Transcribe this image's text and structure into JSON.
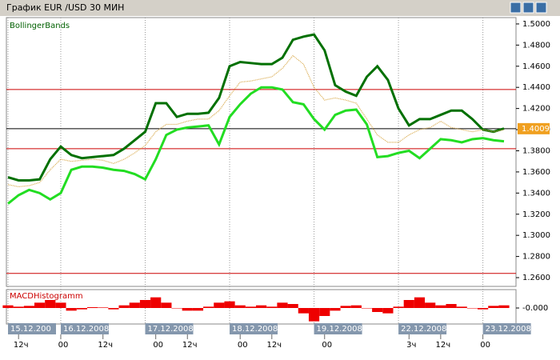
{
  "window_title": "График EUR /USD  30 МИН",
  "chart_data": [
    {
      "type": "line",
      "title": "BollingerBands",
      "categories": [
        "15.12.200",
        null,
        null,
        null,
        null,
        "16.12.2008",
        null,
        null,
        null,
        null,
        null,
        null,
        null,
        "17.12.2008",
        null,
        null,
        null,
        null,
        null,
        null,
        null,
        "18.12.2008",
        null,
        null,
        null,
        null,
        null,
        null,
        null,
        "19.12.2008",
        null,
        null,
        null,
        null,
        null,
        null,
        null,
        "22.12.2008",
        null,
        null,
        null,
        null,
        null,
        null,
        null,
        "23.12.2008",
        null,
        null
      ],
      "time_labels": [
        null,
        "12ч",
        null,
        null,
        null,
        "00",
        null,
        null,
        null,
        "12ч",
        null,
        null,
        null,
        null,
        "00",
        null,
        null,
        "12ч",
        null,
        null,
        null,
        null,
        "00",
        null,
        null,
        "12ч",
        null,
        null,
        null,
        null,
        "00",
        null,
        null,
        null,
        null,
        null,
        null,
        null,
        "3ч",
        null,
        null,
        "12ч",
        null,
        null,
        null,
        "00",
        null,
        null
      ],
      "series": [
        {
          "color": "#007000",
          "values": [
            1.355,
            1.352,
            1.352,
            1.353,
            1.372,
            1.384,
            1.376,
            1.373,
            1.374,
            1.375,
            1.376,
            1.382,
            1.39,
            1.398,
            1.425,
            1.425,
            1.412,
            1.415,
            1.415,
            1.416,
            1.43,
            1.46,
            1.464,
            1.463,
            1.462,
            1.462,
            1.468,
            1.485,
            1.488,
            1.49,
            1.475,
            1.442,
            1.436,
            1.432,
            1.45,
            1.46,
            1.447,
            1.42,
            1.404,
            1.41,
            1.41,
            1.414,
            1.418,
            1.418,
            1.41,
            1.4,
            1.398,
            1.401
          ]
        },
        {
          "color": "#22dd22",
          "values": [
            1.33,
            1.338,
            1.343,
            1.34,
            1.334,
            1.34,
            1.362,
            1.365,
            1.365,
            1.364,
            1.362,
            1.361,
            1.358,
            1.353,
            1.372,
            1.395,
            1.4,
            1.402,
            1.403,
            1.404,
            1.386,
            1.412,
            1.424,
            1.434,
            1.44,
            1.44,
            1.438,
            1.426,
            1.424,
            1.41,
            1.4,
            1.414,
            1.418,
            1.419,
            1.405,
            1.374,
            1.375,
            1.378,
            1.38,
            1.373,
            1.382,
            1.391,
            1.39,
            1.388,
            1.391,
            1.392,
            1.39,
            1.389
          ]
        },
        {
          "color": "#d8a848",
          "values": [
            1.348,
            1.346,
            1.347,
            1.35,
            1.362,
            1.372,
            1.37,
            1.371,
            1.372,
            1.371,
            1.368,
            1.372,
            1.378,
            1.385,
            1.398,
            1.405,
            1.405,
            1.408,
            1.41,
            1.41,
            1.418,
            1.432,
            1.445,
            1.446,
            1.448,
            1.45,
            1.458,
            1.47,
            1.462,
            1.44,
            1.428,
            1.43,
            1.428,
            1.425,
            1.41,
            1.395,
            1.388,
            1.388,
            1.395,
            1.4,
            1.402,
            1.408,
            1.402,
            1.4,
            1.398,
            1.4,
            1.398,
            1.4
          ]
        }
      ],
      "hlines": [
        {
          "value": 1.438,
          "color": "#cc0000"
        },
        {
          "value": 1.382,
          "color": "#cc0000"
        },
        {
          "value": 1.264,
          "color": "#cc0000"
        }
      ],
      "last_price": 1.4009,
      "ylim": [
        1.2517,
        1.506
      ],
      "yticks": [
        {
          "value": 1.5,
          "label": "1.5000"
        },
        {
          "value": 1.48,
          "label": "1.4800"
        },
        {
          "value": 1.46,
          "label": "1.4600"
        },
        {
          "value": 1.44,
          "label": "1.4400"
        },
        {
          "value": 1.42,
          "label": "1.4200"
        },
        {
          "value": 1.4,
          "label": "1.4000"
        },
        {
          "value": 1.38,
          "label": "1.3800"
        },
        {
          "value": 1.36,
          "label": "1.3600"
        },
        {
          "value": 1.34,
          "label": "1.3400"
        },
        {
          "value": 1.32,
          "label": "1.3200"
        },
        {
          "value": 1.3,
          "label": "1.3000"
        },
        {
          "value": 1.28,
          "label": "1.2800"
        },
        {
          "value": 1.26,
          "label": "1.2600"
        }
      ]
    },
    {
      "type": "bar",
      "title": "MACDHistogramm",
      "color": "#ee0000",
      "values": [
        0.001,
        0.0005,
        0.0008,
        0.002,
        0.003,
        0.002,
        -0.001,
        -0.0005,
        0.0003,
        0.0002,
        -0.0005,
        0.001,
        0.002,
        0.003,
        0.004,
        0.002,
        0,
        -0.001,
        -0.001,
        0.0005,
        0.002,
        0.0025,
        0.001,
        0.0005,
        0.001,
        0.0005,
        0.002,
        0.0015,
        -0.002,
        -0.005,
        -0.003,
        -0.001,
        0.0008,
        0.001,
        0,
        -0.0015,
        -0.002,
        0.0005,
        0.003,
        0.004,
        0.002,
        0.001,
        0.0015,
        0.0005,
        0,
        -0.0005,
        0.0008,
        0.001
      ],
      "ylim": [
        -0.006,
        0.006
      ],
      "yticks": [
        {
          "value": 0,
          "label": "-0.000"
        }
      ]
    }
  ]
}
